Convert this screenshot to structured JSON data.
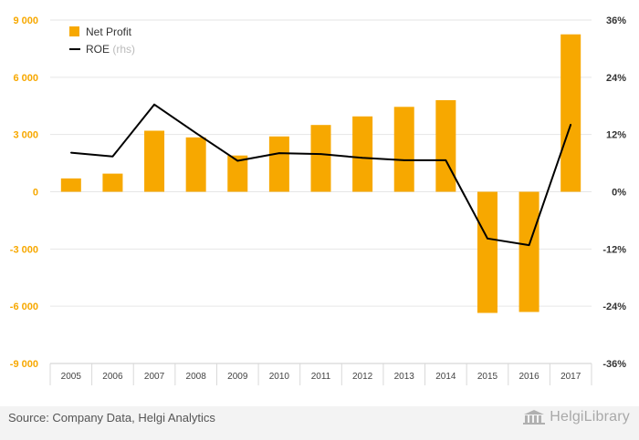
{
  "source": "Source: Company Data, Helgi Analytics",
  "logo": {
    "text": "HelgiLibrary",
    "icon": "library-building-icon"
  },
  "colors": {
    "bar": "#f7a800",
    "line": "#000000",
    "left_ticks": "#f7a800",
    "right_ticks": "#333333",
    "grid": "#e6e6e6"
  },
  "chart_data": {
    "type": "bar",
    "categories": [
      "2005",
      "2006",
      "2007",
      "2008",
      "2009",
      "2010",
      "2011",
      "2012",
      "2013",
      "2014",
      "2015",
      "2016",
      "2017"
    ],
    "series": [
      {
        "name": "Net Profit",
        "type": "bar",
        "axis": "left",
        "values": [
          700,
          950,
          3200,
          2850,
          1900,
          2900,
          3500,
          3950,
          4450,
          4800,
          -6350,
          -6300,
          8250
        ]
      },
      {
        "name": "ROE",
        "name_suffix": "(rhs)",
        "type": "line",
        "axis": "right",
        "values": [
          8.2,
          7.4,
          18.3,
          12.3,
          6.5,
          8.1,
          7.9,
          7.1,
          6.6,
          6.6,
          -9.8,
          -11.2,
          14.1
        ]
      }
    ],
    "y_left": {
      "ylim": [
        -9000,
        9000
      ],
      "ticks": [
        9000,
        6000,
        3000,
        0,
        -3000,
        -6000,
        -9000
      ],
      "tick_labels": [
        "9 000",
        "6 000",
        "3 000",
        "0",
        "-3 000",
        "-6 000",
        "-9 000"
      ]
    },
    "y_right": {
      "ylim": [
        -36,
        36
      ],
      "ticks": [
        36,
        24,
        12,
        0,
        -12,
        -24,
        -36
      ],
      "tick_labels": [
        "36%",
        "24%",
        "12%",
        "0%",
        "-12%",
        "-24%",
        "-36%"
      ]
    },
    "legend": {
      "position": "top-left"
    },
    "grid": true
  }
}
